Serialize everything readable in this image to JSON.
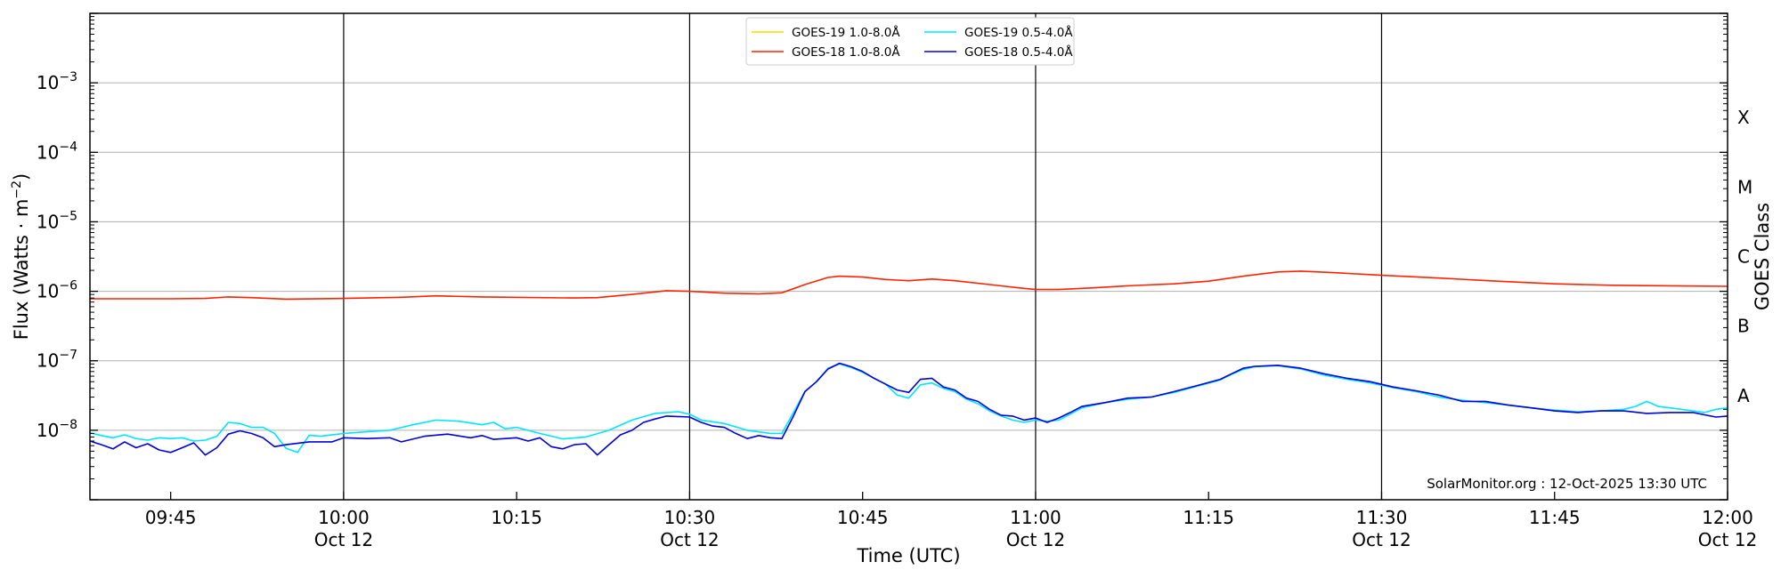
{
  "chart_data": {
    "type": "line",
    "title": "",
    "xlabel": "Time (UTC)",
    "ylabel_prefix": "Flux (Watts · m",
    "ylabel_exp": "−2",
    "ylabel_suffix": ")",
    "y2label": "GOES Class",
    "yscale": "log",
    "xlim": [
      "09:38",
      "12:00"
    ],
    "ylim": [
      1e-09,
      0.01
    ],
    "grid": "horizontal at each decade",
    "legend_position": "top-center",
    "credit": "SolarMonitor.org : 12-Oct-2025 13:30 UTC",
    "x_ticks": [
      {
        "time": "09:45",
        "label": "09:45",
        "sub": ""
      },
      {
        "time": "10:00",
        "label": "10:00",
        "sub": "Oct 12"
      },
      {
        "time": "10:15",
        "label": "10:15",
        "sub": ""
      },
      {
        "time": "10:30",
        "label": "10:30",
        "sub": "Oct 12"
      },
      {
        "time": "10:45",
        "label": "10:45",
        "sub": ""
      },
      {
        "time": "11:00",
        "label": "11:00",
        "sub": "Oct 12"
      },
      {
        "time": "11:15",
        "label": "11:15",
        "sub": ""
      },
      {
        "time": "11:30",
        "label": "11:30",
        "sub": "Oct 12"
      },
      {
        "time": "11:45",
        "label": "11:45",
        "sub": ""
      },
      {
        "time": "12:00",
        "label": "12:00",
        "sub": "Oct 12"
      }
    ],
    "vlines": [
      "10:00",
      "10:30",
      "11:00",
      "11:30"
    ],
    "y_ticks": [
      {
        "exp": -8,
        "label": "10",
        "sup": "−8"
      },
      {
        "exp": -7,
        "label": "10",
        "sup": "−7"
      },
      {
        "exp": -6,
        "label": "10",
        "sup": "−6"
      },
      {
        "exp": -5,
        "label": "10",
        "sup": "−5"
      },
      {
        "exp": -4,
        "label": "10",
        "sup": "−4"
      },
      {
        "exp": -3,
        "label": "10",
        "sup": "−3"
      }
    ],
    "goes_classes": [
      {
        "label": "A",
        "exp": -7.5
      },
      {
        "label": "B",
        "exp": -6.5
      },
      {
        "label": "C",
        "exp": -5.5
      },
      {
        "label": "M",
        "exp": -4.5
      },
      {
        "label": "X",
        "exp": -3.5
      }
    ],
    "series": [
      {
        "name": "GOES-19 1.0-8.0Å",
        "color": "#ffd700",
        "legend_col": 0,
        "legend_row": 0,
        "points": []
      },
      {
        "name": "GOES-19 0.5-4.0Å",
        "color": "#00e5ff",
        "legend_col": 1,
        "legend_row": 0,
        "points": [
          [
            "09:38",
            9.2e-09
          ],
          [
            "09:39",
            8.4e-09
          ],
          [
            "09:40",
            7.8e-09
          ],
          [
            "09:41",
            8.6e-09
          ],
          [
            "09:42",
            7.6e-09
          ],
          [
            "09:43",
            7.2e-09
          ],
          [
            "09:44",
            7.8e-09
          ],
          [
            "09:45",
            7.6e-09
          ],
          [
            "09:46",
            7.8e-09
          ],
          [
            "09:47",
            7e-09
          ],
          [
            "09:48",
            7.2e-09
          ],
          [
            "09:49",
            8.2e-09
          ],
          [
            "09:50",
            1.3e-08
          ],
          [
            "09:51",
            1.25e-08
          ],
          [
            "09:52",
            1.1e-08
          ],
          [
            "09:53",
            1.1e-08
          ],
          [
            "09:54",
            9e-09
          ],
          [
            "09:55",
            5.5e-09
          ],
          [
            "09:56",
            4.8e-09
          ],
          [
            "09:57",
            8.5e-09
          ],
          [
            "09:58",
            8.2e-09
          ],
          [
            "10:00",
            9e-09
          ],
          [
            "10:02",
            9.5e-09
          ],
          [
            "10:04",
            1e-08
          ],
          [
            "10:06",
            1.2e-08
          ],
          [
            "10:08",
            1.4e-08
          ],
          [
            "10:10",
            1.35e-08
          ],
          [
            "10:12",
            1.2e-08
          ],
          [
            "10:13",
            1.3e-08
          ],
          [
            "10:14",
            1.05e-08
          ],
          [
            "10:15",
            1.1e-08
          ],
          [
            "10:17",
            9e-09
          ],
          [
            "10:19",
            7.5e-09
          ],
          [
            "10:21",
            8e-09
          ],
          [
            "10:23",
            1e-08
          ],
          [
            "10:25",
            1.4e-08
          ],
          [
            "10:27",
            1.75e-08
          ],
          [
            "10:29",
            1.85e-08
          ],
          [
            "10:30",
            1.7e-08
          ],
          [
            "10:31",
            1.4e-08
          ],
          [
            "10:33",
            1.25e-08
          ],
          [
            "10:35",
            1e-08
          ],
          [
            "10:37",
            9e-09
          ],
          [
            "10:38",
            9e-09
          ],
          [
            "10:39",
            1.8e-08
          ],
          [
            "10:40",
            3.6e-08
          ],
          [
            "10:41",
            5e-08
          ],
          [
            "10:42",
            7.8e-08
          ],
          [
            "10:43",
            9e-08
          ],
          [
            "10:44",
            8e-08
          ],
          [
            "10:45",
            6.8e-08
          ],
          [
            "10:47",
            4.6e-08
          ],
          [
            "10:48",
            3.2e-08
          ],
          [
            "10:49",
            2.9e-08
          ],
          [
            "10:50",
            4.5e-08
          ],
          [
            "10:51",
            4.8e-08
          ],
          [
            "10:52",
            4e-08
          ],
          [
            "10:53",
            3.6e-08
          ],
          [
            "10:54",
            2.8e-08
          ],
          [
            "10:55",
            2.4e-08
          ],
          [
            "10:56",
            1.9e-08
          ],
          [
            "10:57",
            1.6e-08
          ],
          [
            "10:58",
            1.4e-08
          ],
          [
            "10:59",
            1.3e-08
          ],
          [
            "11:00",
            1.4e-08
          ],
          [
            "11:01",
            1.35e-08
          ],
          [
            "11:02",
            1.4e-08
          ],
          [
            "11:03",
            1.7e-08
          ],
          [
            "11:04",
            2.1e-08
          ],
          [
            "11:06",
            2.5e-08
          ],
          [
            "11:08",
            2.8e-08
          ],
          [
            "11:10",
            3e-08
          ],
          [
            "11:12",
            3.5e-08
          ],
          [
            "11:14",
            4.3e-08
          ],
          [
            "11:16",
            5.3e-08
          ],
          [
            "11:17",
            6.4e-08
          ],
          [
            "11:18",
            7.5e-08
          ],
          [
            "11:19",
            8.2e-08
          ],
          [
            "11:21",
            8.5e-08
          ],
          [
            "11:23",
            7.6e-08
          ],
          [
            "11:25",
            6.2e-08
          ],
          [
            "11:27",
            5.4e-08
          ],
          [
            "11:29",
            4.8e-08
          ],
          [
            "11:31",
            4.1e-08
          ],
          [
            "11:33",
            3.6e-08
          ],
          [
            "11:35",
            3e-08
          ],
          [
            "11:37",
            2.7e-08
          ],
          [
            "11:39",
            2.5e-08
          ],
          [
            "11:41",
            2.3e-08
          ],
          [
            "11:43",
            2.1e-08
          ],
          [
            "11:45",
            1.95e-08
          ],
          [
            "11:47",
            1.85e-08
          ],
          [
            "11:49",
            1.9e-08
          ],
          [
            "11:51",
            2e-08
          ],
          [
            "11:52",
            2.2e-08
          ],
          [
            "11:53",
            2.6e-08
          ],
          [
            "11:54",
            2.2e-08
          ],
          [
            "11:56",
            2e-08
          ],
          [
            "11:58",
            1.8e-08
          ],
          [
            "11:59",
            2e-08
          ],
          [
            "12:00",
            2.1e-08
          ]
        ]
      },
      {
        "name": "GOES-18 1.0-8.0Å",
        "color": "#ff2200",
        "legend_col": 0,
        "legend_row": 1,
        "points": [
          [
            "09:38",
            7.8e-07
          ],
          [
            "09:45",
            7.8e-07
          ],
          [
            "09:48",
            7.9e-07
          ],
          [
            "09:50",
            8.3e-07
          ],
          [
            "09:52",
            8.1e-07
          ],
          [
            "09:55",
            7.7e-07
          ],
          [
            "10:00",
            7.9e-07
          ],
          [
            "10:05",
            8.2e-07
          ],
          [
            "10:08",
            8.6e-07
          ],
          [
            "10:12",
            8.3e-07
          ],
          [
            "10:20",
            8e-07
          ],
          [
            "10:22",
            8.1e-07
          ],
          [
            "10:25",
            9e-07
          ],
          [
            "10:28",
            1.02e-06
          ],
          [
            "10:30",
            1e-06
          ],
          [
            "10:33",
            9.4e-07
          ],
          [
            "10:36",
            9.2e-07
          ],
          [
            "10:38",
            9.5e-07
          ],
          [
            "10:40",
            1.25e-06
          ],
          [
            "10:42",
            1.58e-06
          ],
          [
            "10:43",
            1.65e-06
          ],
          [
            "10:45",
            1.6e-06
          ],
          [
            "10:47",
            1.48e-06
          ],
          [
            "10:49",
            1.42e-06
          ],
          [
            "10:51",
            1.5e-06
          ],
          [
            "10:53",
            1.42e-06
          ],
          [
            "10:56",
            1.25e-06
          ],
          [
            "10:59",
            1.1e-06
          ],
          [
            "11:00",
            1.06e-06
          ],
          [
            "11:02",
            1.06e-06
          ],
          [
            "11:05",
            1.12e-06
          ],
          [
            "11:08",
            1.2e-06
          ],
          [
            "11:12",
            1.28e-06
          ],
          [
            "11:15",
            1.4e-06
          ],
          [
            "11:18",
            1.65e-06
          ],
          [
            "11:21",
            1.9e-06
          ],
          [
            "11:23",
            1.95e-06
          ],
          [
            "11:26",
            1.85e-06
          ],
          [
            "11:30",
            1.7e-06
          ],
          [
            "11:35",
            1.55e-06
          ],
          [
            "11:40",
            1.4e-06
          ],
          [
            "11:45",
            1.28e-06
          ],
          [
            "11:50",
            1.22e-06
          ],
          [
            "11:55",
            1.2e-06
          ],
          [
            "12:00",
            1.18e-06
          ]
        ]
      },
      {
        "name": "GOES-18 0.5-4.0Å",
        "color": "#0000dd",
        "legend_col": 1,
        "legend_row": 1,
        "points": [
          [
            "09:38",
            7e-09
          ],
          [
            "09:39",
            6.2e-09
          ],
          [
            "09:40",
            5.4e-09
          ],
          [
            "09:41",
            6.8e-09
          ],
          [
            "09:42",
            5.6e-09
          ],
          [
            "09:43",
            6.4e-09
          ],
          [
            "09:44",
            5.2e-09
          ],
          [
            "09:45",
            4.8e-09
          ],
          [
            "09:46",
            5.6e-09
          ],
          [
            "09:47",
            6.6e-09
          ],
          [
            "09:48",
            4.4e-09
          ],
          [
            "09:49",
            5.6e-09
          ],
          [
            "09:50",
            8.8e-09
          ],
          [
            "09:51",
            9.8e-09
          ],
          [
            "09:52",
            9e-09
          ],
          [
            "09:53",
            7.8e-09
          ],
          [
            "09:54",
            5.8e-09
          ],
          [
            "09:55",
            6.2e-09
          ],
          [
            "09:57",
            6.8e-09
          ],
          [
            "09:59",
            6.8e-09
          ],
          [
            "10:00",
            7.8e-09
          ],
          [
            "10:02",
            7.6e-09
          ],
          [
            "10:04",
            7.8e-09
          ],
          [
            "10:05",
            6.8e-09
          ],
          [
            "10:07",
            8.2e-09
          ],
          [
            "10:09",
            8.8e-09
          ],
          [
            "10:11",
            7.8e-09
          ],
          [
            "10:12",
            8.4e-09
          ],
          [
            "10:13",
            7.4e-09
          ],
          [
            "10:15",
            7.8e-09
          ],
          [
            "10:16",
            7e-09
          ],
          [
            "10:17",
            7.8e-09
          ],
          [
            "10:18",
            5.8e-09
          ],
          [
            "10:19",
            5.4e-09
          ],
          [
            "10:20",
            6.2e-09
          ],
          [
            "10:21",
            6.4e-09
          ],
          [
            "10:22",
            4.4e-09
          ],
          [
            "10:23",
            6.2e-09
          ],
          [
            "10:24",
            8.6e-09
          ],
          [
            "10:25",
            1e-08
          ],
          [
            "10:26",
            1.3e-08
          ],
          [
            "10:27",
            1.45e-08
          ],
          [
            "10:28",
            1.6e-08
          ],
          [
            "10:30",
            1.55e-08
          ],
          [
            "10:31",
            1.3e-08
          ],
          [
            "10:32",
            1.15e-08
          ],
          [
            "10:33",
            1.1e-08
          ],
          [
            "10:34",
            9e-09
          ],
          [
            "10:35",
            7.6e-09
          ],
          [
            "10:36",
            8.4e-09
          ],
          [
            "10:37",
            7.8e-09
          ],
          [
            "10:38",
            7.6e-09
          ],
          [
            "10:39",
            1.6e-08
          ],
          [
            "10:40",
            3.6e-08
          ],
          [
            "10:41",
            5e-08
          ],
          [
            "10:42",
            7.6e-08
          ],
          [
            "10:43",
            9.2e-08
          ],
          [
            "10:44",
            8.2e-08
          ],
          [
            "10:45",
            7e-08
          ],
          [
            "10:46",
            5.6e-08
          ],
          [
            "10:47",
            4.6e-08
          ],
          [
            "10:48",
            3.8e-08
          ],
          [
            "10:49",
            3.5e-08
          ],
          [
            "10:50",
            5.4e-08
          ],
          [
            "10:51",
            5.6e-08
          ],
          [
            "10:52",
            4.2e-08
          ],
          [
            "10:53",
            3.8e-08
          ],
          [
            "10:54",
            2.9e-08
          ],
          [
            "10:55",
            2.6e-08
          ],
          [
            "10:56",
            2e-08
          ],
          [
            "10:57",
            1.65e-08
          ],
          [
            "10:58",
            1.6e-08
          ],
          [
            "10:59",
            1.4e-08
          ],
          [
            "11:00",
            1.5e-08
          ],
          [
            "11:01",
            1.3e-08
          ],
          [
            "11:02",
            1.5e-08
          ],
          [
            "11:03",
            1.8e-08
          ],
          [
            "11:04",
            2.2e-08
          ],
          [
            "11:06",
            2.5e-08
          ],
          [
            "11:08",
            2.9e-08
          ],
          [
            "11:10",
            3e-08
          ],
          [
            "11:12",
            3.6e-08
          ],
          [
            "11:14",
            4.4e-08
          ],
          [
            "11:16",
            5.4e-08
          ],
          [
            "11:17",
            6.5e-08
          ],
          [
            "11:18",
            7.8e-08
          ],
          [
            "11:19",
            8.3e-08
          ],
          [
            "11:21",
            8.6e-08
          ],
          [
            "11:23",
            7.8e-08
          ],
          [
            "11:25",
            6.5e-08
          ],
          [
            "11:27",
            5.6e-08
          ],
          [
            "11:29",
            5e-08
          ],
          [
            "11:31",
            4.2e-08
          ],
          [
            "11:33",
            3.7e-08
          ],
          [
            "11:35",
            3.2e-08
          ],
          [
            "11:37",
            2.6e-08
          ],
          [
            "11:39",
            2.6e-08
          ],
          [
            "11:41",
            2.3e-08
          ],
          [
            "11:43",
            2.1e-08
          ],
          [
            "11:45",
            1.9e-08
          ],
          [
            "11:47",
            1.8e-08
          ],
          [
            "11:49",
            1.9e-08
          ],
          [
            "11:51",
            1.9e-08
          ],
          [
            "11:53",
            1.75e-08
          ],
          [
            "11:55",
            1.8e-08
          ],
          [
            "11:57",
            1.8e-08
          ],
          [
            "11:59",
            1.55e-08
          ],
          [
            "12:00",
            1.6e-08
          ]
        ]
      }
    ]
  }
}
